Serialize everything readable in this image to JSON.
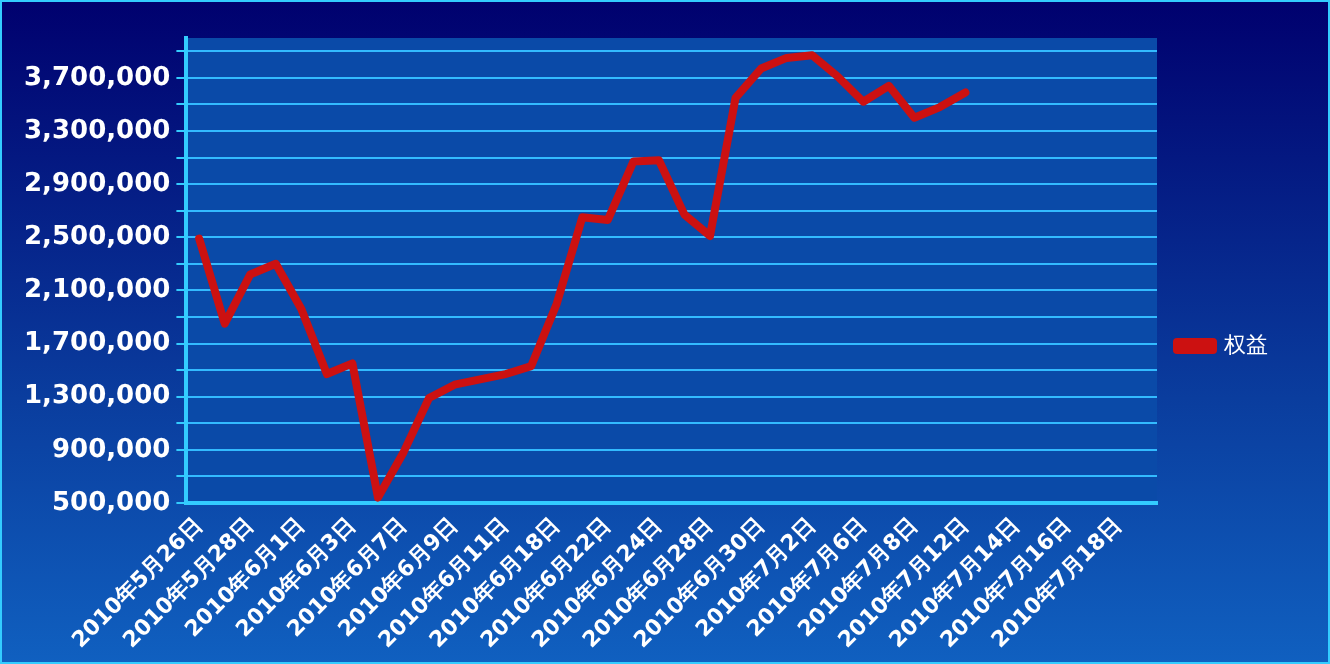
{
  "chart_data": {
    "type": "line",
    "categories": [
      "2010年5月26日",
      null,
      "2010年5月28日",
      null,
      "2010年6月1日",
      null,
      "2010年6月3日",
      null,
      "2010年6月7日",
      null,
      "2010年6月9日",
      null,
      "2010年6月11日",
      null,
      "2010年6月18日",
      null,
      "2010年6月22日",
      null,
      "2010年6月24日",
      null,
      "2010年6月28日",
      null,
      "2010年6月30日",
      null,
      "2010年7月2日",
      null,
      "2010年7月6日",
      null,
      "2010年7月8日",
      null,
      "2010年7月12日",
      null,
      "2010年7月14日",
      null,
      "2010年7月16日",
      null,
      "2010年7月18日",
      null
    ],
    "series": [
      {
        "name": "权益",
        "color": "#cc1111",
        "values": [
          2490000,
          1850000,
          2220000,
          2300000,
          1960000,
          1470000,
          1550000,
          540000,
          880000,
          1290000,
          1390000,
          1430000,
          1470000,
          1530000,
          2000000,
          2650000,
          2630000,
          3070000,
          3080000,
          2670000,
          2510000,
          3550000,
          3770000,
          3850000,
          3870000,
          3710000,
          3520000,
          3640000,
          3400000,
          3480000,
          3590000,
          null,
          null,
          null,
          null,
          null,
          null,
          null
        ]
      }
    ],
    "ylim": [
      500000,
      4000000
    ],
    "yticks": [
      {
        "value": 500000,
        "label": "500,000"
      },
      {
        "value": 700000,
        "label": null
      },
      {
        "value": 900000,
        "label": "900,000"
      },
      {
        "value": 1100000,
        "label": null
      },
      {
        "value": 1300000,
        "label": "1,300,000"
      },
      {
        "value": 1500000,
        "label": null
      },
      {
        "value": 1700000,
        "label": "1,700,000"
      },
      {
        "value": 1900000,
        "label": null
      },
      {
        "value": 2100000,
        "label": "2,100,000"
      },
      {
        "value": 2300000,
        "label": null
      },
      {
        "value": 2500000,
        "label": "2,500,000"
      },
      {
        "value": 2700000,
        "label": null
      },
      {
        "value": 2900000,
        "label": "2,900,000"
      },
      {
        "value": 3100000,
        "label": null
      },
      {
        "value": 3300000,
        "label": "3,300,000"
      },
      {
        "value": 3500000,
        "label": null
      },
      {
        "value": 3700000,
        "label": "3,700,000"
      },
      {
        "value": 3900000,
        "label": null
      }
    ],
    "grid": "y",
    "legend": "right",
    "marker": "none",
    "line_style": "solid"
  }
}
